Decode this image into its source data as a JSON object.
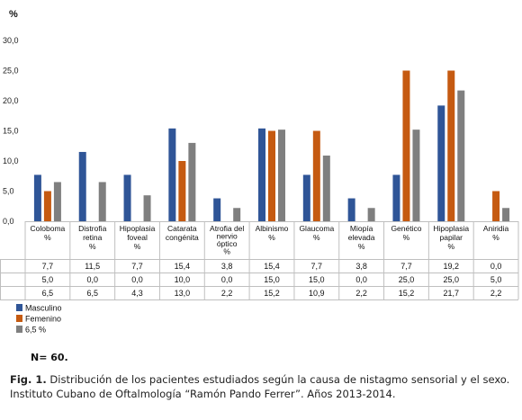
{
  "chart_data": {
    "type": "bar",
    "ylabel": "%",
    "ylim": [
      0,
      30
    ],
    "yticks": [
      "0,0",
      "5,0",
      "10,0",
      "15,0",
      "20,0",
      "25,0",
      "30,0"
    ],
    "grid": false,
    "legend_position": "bottom-left",
    "categories": [
      [
        "Coloboma",
        "%"
      ],
      [
        "Distrofia",
        "retina",
        "%"
      ],
      [
        "Hipoplasia",
        "foveal",
        "%"
      ],
      [
        "Catarata",
        "congénita"
      ],
      [
        "Atrofia del",
        "nervio",
        "óptico",
        "%"
      ],
      [
        "Albinismo",
        "%"
      ],
      [
        "Glaucoma",
        "%"
      ],
      [
        "Miopía",
        "elevada",
        "%"
      ],
      [
        "Genético",
        "%"
      ],
      [
        "Hipoplasia",
        "papilar",
        "%"
      ],
      [
        "Aniridia",
        "%"
      ]
    ],
    "series": [
      {
        "name": "Masculino",
        "color": "#2f5597",
        "values": [
          7.7,
          11.5,
          7.7,
          15.4,
          3.8,
          15.4,
          7.7,
          3.8,
          7.7,
          19.2,
          0.0
        ],
        "labels": [
          "7,7",
          "11,5",
          "7,7",
          "15,4",
          "3,8",
          "15,4",
          "7,7",
          "3,8",
          "7,7",
          "19,2",
          "0,0"
        ]
      },
      {
        "name": "Femenino",
        "color": "#c55a11",
        "values": [
          5.0,
          0.0,
          0.0,
          10.0,
          0.0,
          15.0,
          15.0,
          0.0,
          25.0,
          25.0,
          5.0
        ],
        "labels": [
          "5,0",
          "0,0",
          "0,0",
          "10,0",
          "0,0",
          "15,0",
          "15,0",
          "0,0",
          "25,0",
          "25,0",
          "5,0"
        ]
      },
      {
        "name": "6,5 %",
        "color": "#7f7f7f",
        "values": [
          6.5,
          6.5,
          4.3,
          13.0,
          2.2,
          15.2,
          10.9,
          2.2,
          15.2,
          21.7,
          2.2
        ],
        "labels": [
          "6,5",
          "6,5",
          "4,3",
          "13,0",
          "2,2",
          "15,2",
          "10,9",
          "2,2",
          "15,2",
          "21,7",
          "2,2"
        ]
      }
    ]
  },
  "n_label": "N= 60.",
  "caption": {
    "prefix": "Fig. 1.",
    "text": " Distribución de los pacientes estudiados según la causa de nistagmo sensorial y el sexo. Instituto Cubano de Oftalmología “Ramón Pando Ferrer”. Años 2013-2014."
  }
}
